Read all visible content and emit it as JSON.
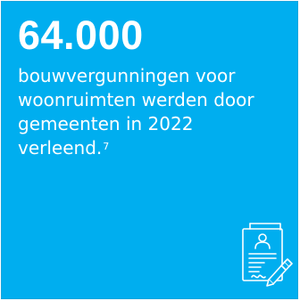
{
  "card": {
    "headline": "64.000",
    "body_lines": [
      "bouwvergunningen voor",
      "woonruimten werden door",
      "gemeenten in 2022",
      "verleend."
    ],
    "footnote": "7",
    "icon": "signed-document-icon",
    "colors": {
      "background": "#00AEEF",
      "text": "#FFFFFF"
    }
  }
}
